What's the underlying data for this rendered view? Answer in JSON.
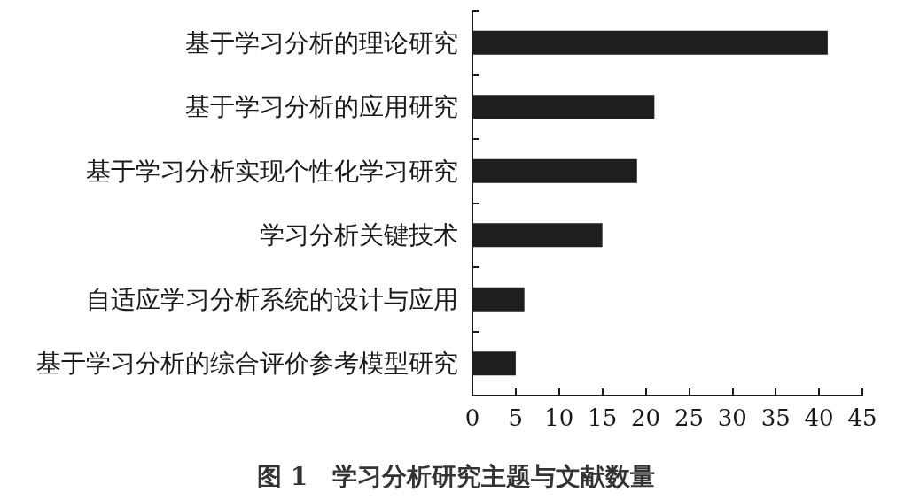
{
  "chart_data": {
    "type": "bar",
    "title": "图 1　学习分析研究主题与文献数量",
    "orientation": "horizontal",
    "categories": [
      "基于学习分析的理论研究",
      "基于学习分析的应用研究",
      "基于学习分析实现个性化学习研究",
      "学习分析关键技术",
      "自适应学习分析系统的设计与应用",
      "基于学习分析的综合评价参考模型研究"
    ],
    "values": [
      41,
      21,
      19,
      15,
      6,
      5
    ],
    "color": "#1e1e1e",
    "xlim": [
      0,
      45
    ],
    "xticks": [
      0,
      5,
      10,
      15,
      20,
      25,
      30,
      35,
      40,
      45
    ]
  }
}
